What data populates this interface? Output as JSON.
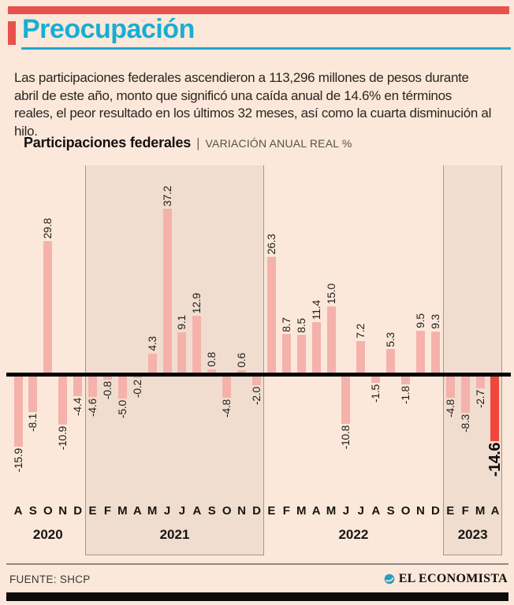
{
  "header": {
    "title": "Preocupación"
  },
  "intro": {
    "lines": [
      "Las participaciones federales ascendieron a 113,296 millones de pesos durante",
      "abril de este año, monto que significó una caída anual de 14.6%  en términos",
      "reales, el peor resultado en los últimos 32 meses, así como la cuarta disminución al",
      "hilo."
    ]
  },
  "chart": {
    "title": "Participaciones federales",
    "separator": "|",
    "subtitle": "VARIACIÓN ANUAL REAL %"
  },
  "chart_data": {
    "type": "bar",
    "title": "Participaciones federales",
    "subtitle": "VARIACIÓN ANUAL REAL %",
    "unit": "%",
    "ylim": [
      -20,
      40
    ],
    "baseline": 0,
    "grid": false,
    "legend": "none",
    "groups": [
      {
        "year": "2020",
        "shaded": false,
        "months": [
          "A",
          "S",
          "O",
          "N",
          "D"
        ],
        "values": [
          -15.9,
          -8.1,
          29.8,
          -10.9,
          -4.4
        ]
      },
      {
        "year": "2021",
        "shaded": true,
        "months": [
          "E",
          "F",
          "M",
          "A",
          "M",
          "J",
          "J",
          "A",
          "S",
          "O",
          "N",
          "D"
        ],
        "values": [
          -4.6,
          -0.8,
          -5.0,
          -0.2,
          4.3,
          37.2,
          9.1,
          12.9,
          0.8,
          -4.8,
          0.6,
          -2.0
        ]
      },
      {
        "year": "2022",
        "shaded": false,
        "months": [
          "E",
          "F",
          "M",
          "A",
          "M",
          "J",
          "J",
          "A",
          "S",
          "O",
          "N",
          "D"
        ],
        "values": [
          26.3,
          8.7,
          8.5,
          11.4,
          15.0,
          -10.8,
          7.2,
          -1.5,
          5.3,
          -1.8,
          9.5,
          9.3
        ]
      },
      {
        "year": "2023",
        "shaded": true,
        "months": [
          "E",
          "F",
          "M",
          "A"
        ],
        "values": [
          -4.8,
          -8.3,
          -2.7,
          -14.6
        ]
      }
    ],
    "highlight": {
      "group": 3,
      "index": 3,
      "value": -14.6
    }
  },
  "footer": {
    "source": "FUENTE: SHCP",
    "brand": "EL ECONOMISTA"
  },
  "icons": {
    "brand": "el-economista-globe-icon"
  },
  "colors": {
    "background": "#fbe8da",
    "band_shade": "#f0ddd0",
    "band_border": "#a59789",
    "bar": "#f5b2aa",
    "bar_highlight": "#f0463c",
    "accent_red": "#e8514d",
    "accent_teal": "#17aed3",
    "axis": "#000000",
    "text": "#201c19"
  }
}
